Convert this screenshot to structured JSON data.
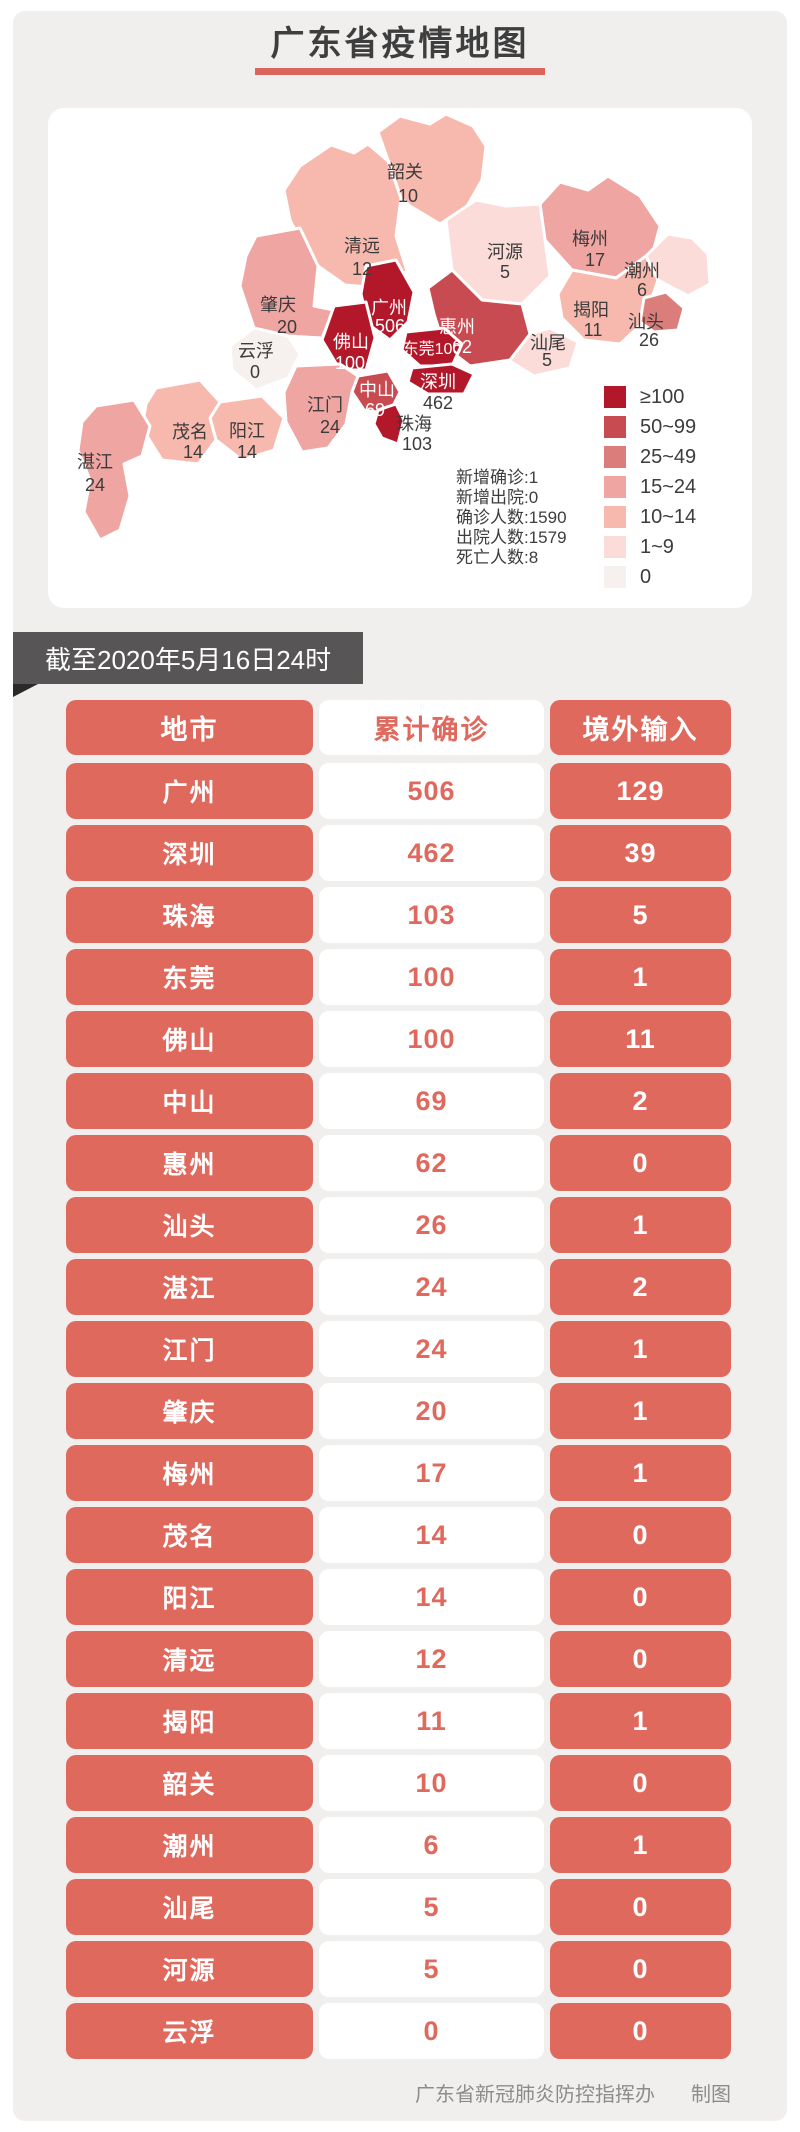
{
  "page": {
    "title": "广东省疫情地图"
  },
  "map": {
    "legend": [
      {
        "range": "≥100",
        "color": "#b2182a"
      },
      {
        "range": "50~99",
        "color": "#c84b51"
      },
      {
        "range": "25~49",
        "color": "#db7d7b"
      },
      {
        "range": "15~24",
        "color": "#efa5a1"
      },
      {
        "range": "10~14",
        "color": "#f7b9ae"
      },
      {
        "range": "1~9",
        "color": "#fbdcd8"
      },
      {
        "range": "0",
        "color": "#f6f0ef"
      }
    ],
    "stats": [
      {
        "label": "新增确诊",
        "value": "1"
      },
      {
        "label": "新增出院",
        "value": "0"
      },
      {
        "label": "确诊人数",
        "value": "1590"
      },
      {
        "label": "出院人数",
        "value": "1579"
      },
      {
        "label": "死亡人数",
        "value": "8"
      }
    ],
    "regions": {
      "shaoguan": {
        "name": "韶关",
        "value": "10"
      },
      "qingyuan": {
        "name": "清远",
        "value": "12"
      },
      "meizhou": {
        "name": "梅州",
        "value": "17"
      },
      "heyuan": {
        "name": "河源",
        "value": "5"
      },
      "chaozhou": {
        "name": "潮州",
        "value": "6"
      },
      "jieyang": {
        "name": "揭阳",
        "value": "11"
      },
      "shantou": {
        "name": "汕头",
        "value": "26"
      },
      "shanwei": {
        "name": "汕尾",
        "value": "5"
      },
      "huizhou": {
        "name": "惠州",
        "value": "62"
      },
      "guangzhou": {
        "name": "广州",
        "value": "506"
      },
      "dongguan": {
        "name": "东莞",
        "value": "100"
      },
      "shenzhen": {
        "name": "深圳",
        "value": "462"
      },
      "foshan": {
        "name": "佛山",
        "value": "100"
      },
      "zhongshan": {
        "name": "中山",
        "value": "69"
      },
      "zhuhai": {
        "name": "珠海",
        "value": "103"
      },
      "jiangmen": {
        "name": "江门",
        "value": "24"
      },
      "zhaoqing": {
        "name": "肇庆",
        "value": "20"
      },
      "yunfu": {
        "name": "云浮",
        "value": "0"
      },
      "yangjiang": {
        "name": "阳江",
        "value": "14"
      },
      "maoming": {
        "name": "茂名",
        "value": "14"
      },
      "zhanjiang": {
        "name": "湛江",
        "value": "24"
      }
    }
  },
  "ribbon": {
    "date_label": "截至2020年5月16日24时"
  },
  "table": {
    "headers": [
      "地市",
      "累计确诊",
      "境外输入"
    ],
    "rows": [
      [
        "广州",
        "506",
        "129"
      ],
      [
        "深圳",
        "462",
        "39"
      ],
      [
        "珠海",
        "103",
        "5"
      ],
      [
        "东莞",
        "100",
        "1"
      ],
      [
        "佛山",
        "100",
        "11"
      ],
      [
        "中山",
        "69",
        "2"
      ],
      [
        "惠州",
        "62",
        "0"
      ],
      [
        "汕头",
        "26",
        "1"
      ],
      [
        "湛江",
        "24",
        "2"
      ],
      [
        "江门",
        "24",
        "1"
      ],
      [
        "肇庆",
        "20",
        "1"
      ],
      [
        "梅州",
        "17",
        "1"
      ],
      [
        "茂名",
        "14",
        "0"
      ],
      [
        "阳江",
        "14",
        "0"
      ],
      [
        "清远",
        "12",
        "0"
      ],
      [
        "揭阳",
        "11",
        "1"
      ],
      [
        "韶关",
        "10",
        "0"
      ],
      [
        "潮州",
        "6",
        "1"
      ],
      [
        "汕尾",
        "5",
        "0"
      ],
      [
        "河源",
        "5",
        "0"
      ],
      [
        "云浮",
        "0",
        "0"
      ]
    ]
  },
  "footer": {
    "credit": "广东省新冠肺炎防控指挥办",
    "maker": "制图"
  }
}
